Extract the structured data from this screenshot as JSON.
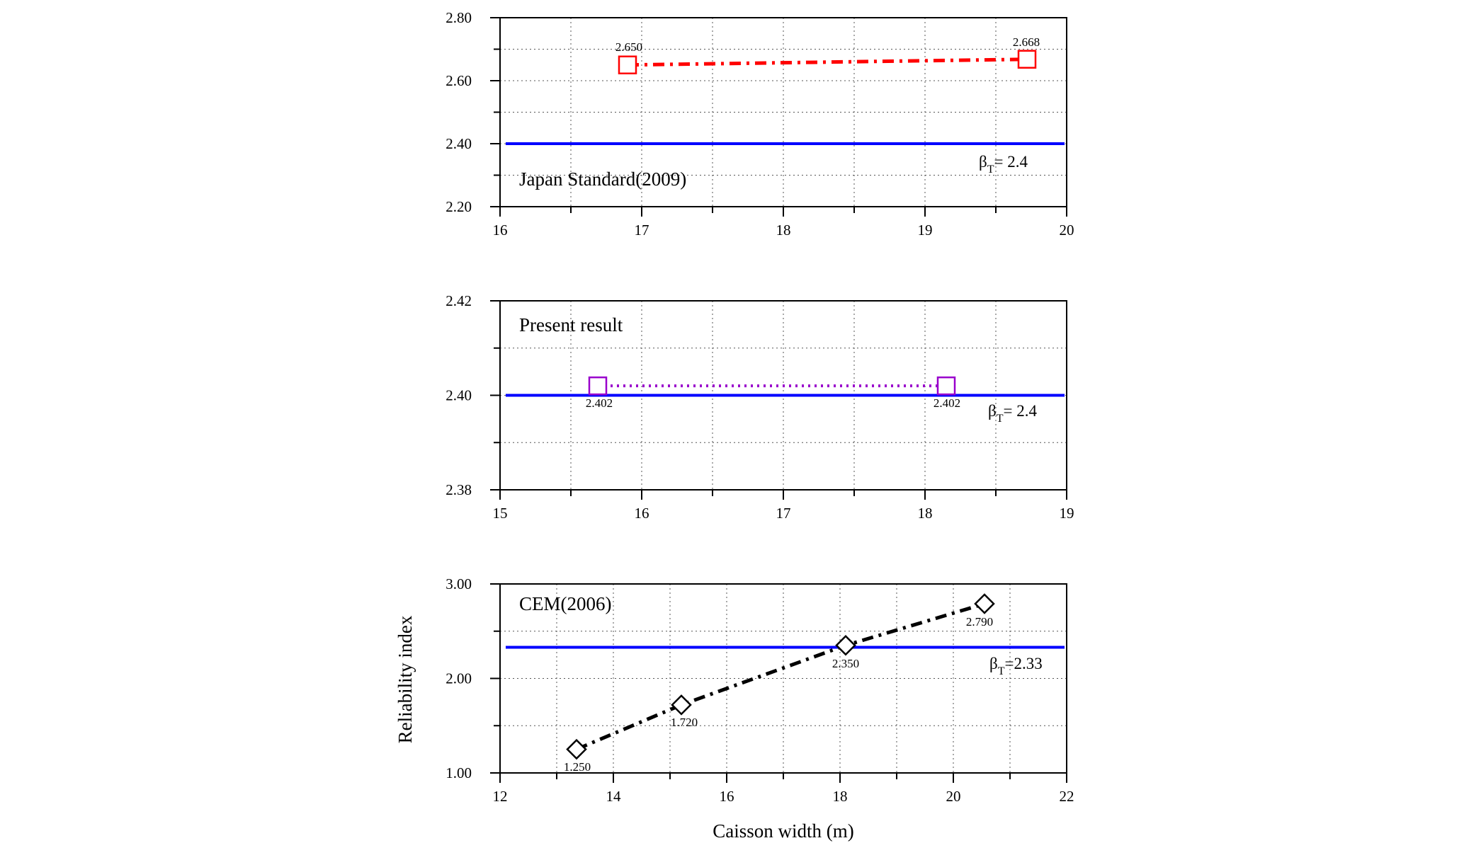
{
  "chart_data": [
    {
      "type": "line",
      "title": "Japan Standard(2009)",
      "xlim": [
        16,
        20
      ],
      "xticks": [
        "16",
        "17",
        "18",
        "19",
        "20"
      ],
      "ylim": [
        2.2,
        2.8
      ],
      "yticks": [
        "2.20",
        "2.40",
        "2.60",
        "2.80"
      ],
      "grid": true,
      "series": [
        {
          "name": "Japan Standard",
          "style": "dash-dot",
          "marker": "square",
          "color": "#ff0000",
          "x": [
            16.9,
            19.72
          ],
          "y": [
            2.65,
            2.668
          ],
          "labels": [
            "2.650",
            "2.668"
          ]
        }
      ],
      "target": {
        "value": 2.4,
        "label_main": "β",
        "label_sub": "T",
        "label_rest": "= 2.4",
        "color": "#0000ff"
      }
    },
    {
      "type": "line",
      "title": "Present result",
      "xlim": [
        15,
        19
      ],
      "xticks": [
        "15",
        "16",
        "17",
        "18",
        "19"
      ],
      "ylim": [
        2.38,
        2.42
      ],
      "yticks": [
        "2.38",
        "2.40",
        "2.42"
      ],
      "grid": true,
      "series": [
        {
          "name": "Present result",
          "style": "dotted",
          "marker": "square",
          "color": "#9900cc",
          "x": [
            15.69,
            18.15
          ],
          "y": [
            2.402,
            2.402
          ],
          "labels": [
            "2.402",
            "2.402"
          ]
        }
      ],
      "target": {
        "value": 2.4,
        "label_main": "β",
        "label_sub": "T",
        "label_rest": "= 2.4",
        "color": "#0000ff"
      }
    },
    {
      "type": "line",
      "title": "CEM(2006)",
      "xlim": [
        12,
        22
      ],
      "xticks": [
        "12",
        "14",
        "16",
        "18",
        "20",
        "22"
      ],
      "ylim": [
        1.0,
        3.0
      ],
      "yticks": [
        "1.00",
        "2.00",
        "3.00"
      ],
      "grid": true,
      "xlabel": "Caisson width (m)",
      "ylabel": "Reliability index",
      "series": [
        {
          "name": "CEM",
          "style": "dash-dot",
          "marker": "diamond",
          "color": "#000000",
          "x": [
            13.35,
            15.2,
            18.1,
            20.55
          ],
          "y": [
            1.25,
            1.72,
            2.35,
            2.79
          ],
          "labels": [
            "1.250",
            "1.720",
            "2.350",
            "2.790"
          ]
        }
      ],
      "target": {
        "value": 2.33,
        "label_main": "β",
        "label_sub": "T",
        "label_rest": "=2.33",
        "color": "#0000ff"
      }
    }
  ]
}
